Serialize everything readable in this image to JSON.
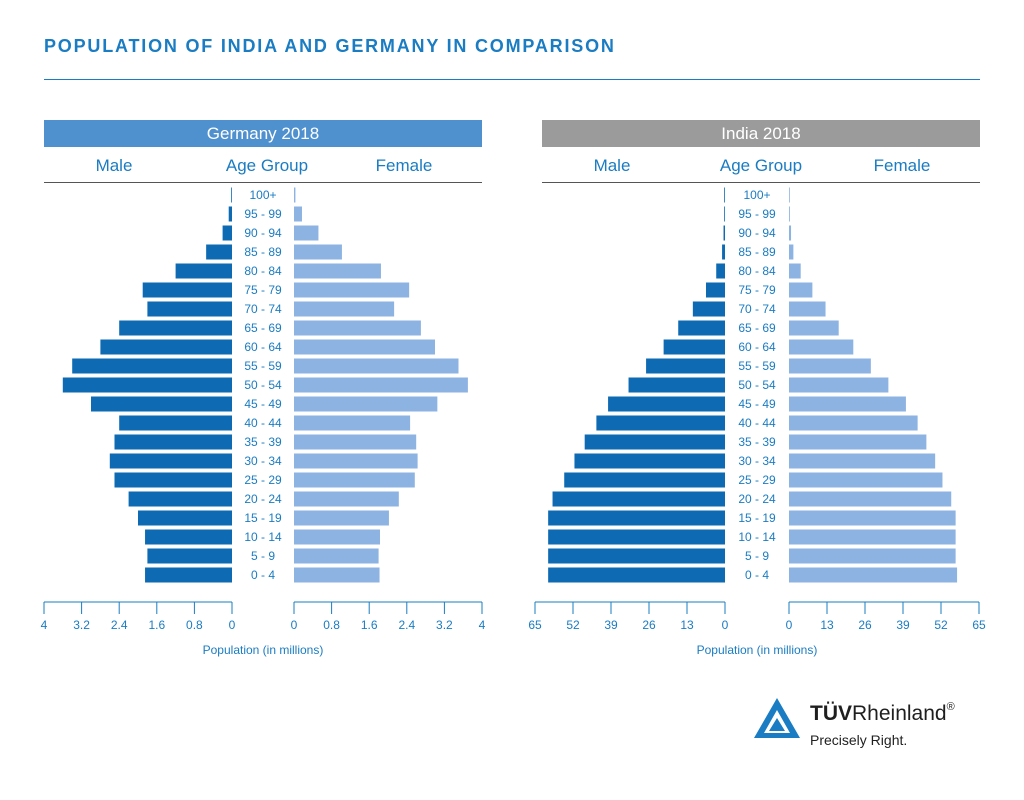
{
  "page": {
    "title": "POPULATION OF INDIA AND GERMANY IN COMPARISON",
    "axis_title": "Population (in millions)"
  },
  "colors": {
    "male": "#0d6ab3",
    "female": "#8db3e2",
    "germany_banner": "#4f90cf",
    "india_banner": "#9b9b9b",
    "accent": "#1a7cc2"
  },
  "logo": {
    "brand_bold": "TÜV",
    "brand_regular": "Rheinland",
    "registered": "®",
    "tagline": "Precisely Right."
  },
  "chart_data": [
    {
      "type": "bar",
      "title": "Germany 2018",
      "headers": [
        "Male",
        "Age Group",
        "Female"
      ],
      "xlabel": "Population (in millions)",
      "xlim": [
        0,
        4
      ],
      "ticks": [
        "0",
        "0.8",
        "1.6",
        "2.4",
        "3.2",
        "4"
      ],
      "categories": [
        "100+",
        "95 - 99",
        "90 - 94",
        "85 - 89",
        "80 - 84",
        "75 - 79",
        "70 - 74",
        "65 - 69",
        "60 - 64",
        "55 - 59",
        "50 - 54",
        "45 - 49",
        "40 - 44",
        "35 - 39",
        "30 - 34",
        "25 - 29",
        "20 - 24",
        "15 - 19",
        "10 - 14",
        "5 - 9",
        "0 - 4"
      ],
      "series": [
        {
          "name": "Male",
          "values": [
            0.01,
            0.07,
            0.2,
            0.55,
            1.2,
            1.9,
            1.8,
            2.4,
            2.8,
            3.4,
            3.6,
            3.0,
            2.4,
            2.5,
            2.6,
            2.5,
            2.2,
            2.0,
            1.85,
            1.8,
            1.85
          ]
        },
        {
          "name": "Female",
          "values": [
            0.03,
            0.17,
            0.52,
            1.02,
            1.85,
            2.45,
            2.13,
            2.7,
            3.0,
            3.5,
            3.7,
            3.05,
            2.47,
            2.6,
            2.63,
            2.57,
            2.23,
            2.02,
            1.83,
            1.8,
            1.82
          ]
        }
      ]
    },
    {
      "type": "bar",
      "title": "India 2018",
      "headers": [
        "Male",
        "Age Group",
        "Female"
      ],
      "xlabel": "Population (in millions)",
      "xlim": [
        0,
        65
      ],
      "ticks": [
        "0",
        "13",
        "26",
        "39",
        "52",
        "65"
      ],
      "categories": [
        "100+",
        "95 - 99",
        "90 - 94",
        "85 - 89",
        "80 - 84",
        "75 - 79",
        "70 - 74",
        "65 - 69",
        "60 - 64",
        "55 - 59",
        "50 - 54",
        "45 - 49",
        "40 - 44",
        "35 - 39",
        "30 - 34",
        "25 - 29",
        "20 - 24",
        "15 - 19",
        "10 - 14",
        "5 - 9",
        "0 - 4"
      ],
      "series": [
        {
          "name": "Male",
          "values": [
            0.1,
            0.2,
            0.5,
            1.0,
            3.0,
            6.5,
            11.0,
            16.0,
            21.0,
            27.0,
            33.0,
            40.0,
            44.0,
            48.0,
            51.5,
            55.0,
            59.0,
            60.5,
            60.5,
            60.5,
            60.5
          ]
        },
        {
          "name": "Female",
          "values": [
            0.15,
            0.3,
            0.7,
            1.5,
            4.0,
            8.0,
            12.5,
            17.0,
            22.0,
            28.0,
            34.0,
            40.0,
            44.0,
            47.0,
            50.0,
            52.5,
            55.5,
            57.0,
            57.0,
            57.0,
            57.5
          ]
        }
      ]
    }
  ]
}
